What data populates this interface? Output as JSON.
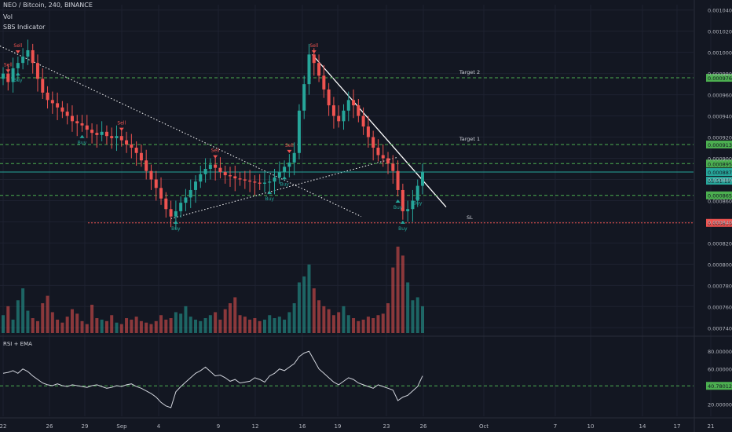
{
  "header": {
    "symbol_line": "NEO / Bitcoin, 240, BINANCE",
    "vol_label": "Vol",
    "indicator_label": "SBS Indicator"
  },
  "chart_data": [
    {
      "type": "candlestick",
      "title": "NEO / Bitcoin, 240, BINANCE",
      "y_axis_ticks": [
        "0.001040",
        "0.001020",
        "0.001000",
        "0.000980",
        "0.000960",
        "0.000940",
        "0.000920",
        "0.000900",
        "0.000880",
        "0.000860",
        "0.000840",
        "0.000820",
        "0.000800",
        "0.000780",
        "0.000760",
        "0.000740"
      ],
      "ylim": [
        0.000735,
        0.001045
      ],
      "x_axis_ticks": [
        "22",
        "26",
        "29",
        "Sep",
        "4",
        "9",
        "12",
        "16",
        "19",
        "23",
        "26",
        "Oct",
        "7",
        "10",
        "14",
        "17",
        "21"
      ],
      "price_close_series": [
        0.00098,
        0.000972,
        0.000985,
        0.00099,
        0.000996,
        0.001002,
        0.00099,
        0.000975,
        0.000962,
        0.000955,
        0.000952,
        0.000948,
        0.000944,
        0.00094,
        0.000935,
        0.000933,
        0.000931,
        0.000927,
        0.000924,
        0.000922,
        0.000925,
        0.000921,
        0.000919,
        0.000921,
        0.000917,
        0.000913,
        0.00091,
        0.000905,
        0.000898,
        0.000888,
        0.00088,
        0.000872,
        0.000862,
        0.000852,
        0.000845,
        0.00085,
        0.000858,
        0.000863,
        0.00087,
        0.000878,
        0.000885,
        0.00089,
        0.000894,
        0.000891,
        0.000887,
        0.000884,
        0.000883,
        0.000881,
        0.00088,
        0.000879,
        0.000878,
        0.000877,
        0.000876,
        0.000877,
        0.000878,
        0.000882,
        0.000887,
        0.000892,
        0.000896,
        0.000905,
        0.000945,
        0.00097,
        0.000998,
        0.00099,
        0.000978,
        0.000965,
        0.00095,
        0.00094,
        0.000935,
        0.000945,
        0.000955,
        0.00095,
        0.00094,
        0.00093,
        0.00092,
        0.00091,
        0.000903,
        0.0009,
        0.000895,
        0.000888,
        0.00087,
        0.00085,
        0.000852,
        0.00086,
        0.000874,
        0.000887
      ],
      "annotations": [
        {
          "text": "Sell",
          "series_index": 1
        },
        {
          "text": "Sell",
          "series_index": 3
        },
        {
          "text": "Buy",
          "series_index": 3
        },
        {
          "text": "Buy",
          "series_index": 16
        },
        {
          "text": "Sell",
          "series_index": 24
        },
        {
          "text": "Sell",
          "series_index": 43
        },
        {
          "text": "Buy",
          "series_index": 35
        },
        {
          "text": "Buy",
          "series_index": 54
        },
        {
          "text": "Sell",
          "series_index": 58
        },
        {
          "text": "Buy",
          "series_index": 57
        },
        {
          "text": "Sell",
          "series_index": 63
        },
        {
          "text": "Buy",
          "series_index": 80
        },
        {
          "text": "Buy",
          "series_index": 81
        },
        {
          "text": "Buy",
          "series_index": 84
        }
      ],
      "levels": [
        {
          "value": 0.000976,
          "label": "Target 2",
          "tag": "0.000976",
          "style": "dashed",
          "color": "#4caf50"
        },
        {
          "value": 0.000913,
          "label": "Target 1",
          "tag": "0.000913",
          "style": "dashed",
          "color": "#4caf50"
        },
        {
          "value": 0.000895,
          "label": "",
          "tag": "0.000895",
          "style": "dashed",
          "color": "#4caf50"
        },
        {
          "value": 0.000887,
          "label": "",
          "tag": "0.000887",
          "style": "solid",
          "color": "#26a69a"
        },
        {
          "value": 0.000865,
          "label": "",
          "tag": "0.000865",
          "style": "dashed",
          "color": "#4caf50"
        },
        {
          "value": 0.000839,
          "label": "SL",
          "tag": "0.000839",
          "style": "dotted",
          "color": "#ef5350"
        }
      ],
      "countdown": "03:51:19"
    },
    {
      "type": "bar",
      "title": "Vol",
      "values": [
        12,
        18,
        9,
        22,
        30,
        15,
        10,
        8,
        20,
        25,
        14,
        9,
        7,
        11,
        16,
        13,
        8,
        6,
        19,
        10,
        9,
        8,
        12,
        7,
        6,
        10,
        9,
        11,
        8,
        7,
        6,
        8,
        12,
        9,
        10,
        14,
        13,
        18,
        11,
        9,
        8,
        10,
        12,
        14,
        9,
        16,
        20,
        24,
        12,
        11,
        9,
        10,
        8,
        9,
        12,
        10,
        11,
        9,
        14,
        20,
        34,
        38,
        46,
        30,
        22,
        18,
        16,
        12,
        14,
        18,
        12,
        10,
        8,
        9,
        11,
        10,
        12,
        13,
        20,
        44,
        58,
        52,
        34,
        22,
        24,
        18
      ]
    },
    {
      "type": "line",
      "title": "RSI + EMA",
      "y_axis_ticks": [
        "80.000000",
        "60.000000",
        "40.780126",
        "20.000000"
      ],
      "ylim": [
        8,
        90
      ],
      "ema_level": 40.780126,
      "values": [
        55,
        56,
        58,
        55,
        60,
        57,
        52,
        48,
        44,
        42,
        41,
        43,
        41,
        40,
        42,
        41,
        40,
        39,
        41,
        42,
        40,
        38,
        39,
        41,
        40,
        42,
        43,
        40,
        38,
        35,
        32,
        28,
        22,
        18,
        16,
        34,
        40,
        45,
        50,
        55,
        58,
        62,
        57,
        52,
        53,
        50,
        46,
        48,
        44,
        45,
        46,
        50,
        48,
        45,
        52,
        55,
        60,
        58,
        62,
        66,
        74,
        78,
        80,
        70,
        60,
        55,
        50,
        45,
        42,
        46,
        50,
        48,
        44,
        42,
        40,
        38,
        42,
        40,
        38,
        36,
        24,
        28,
        30,
        35,
        40,
        52
      ]
    }
  ]
}
